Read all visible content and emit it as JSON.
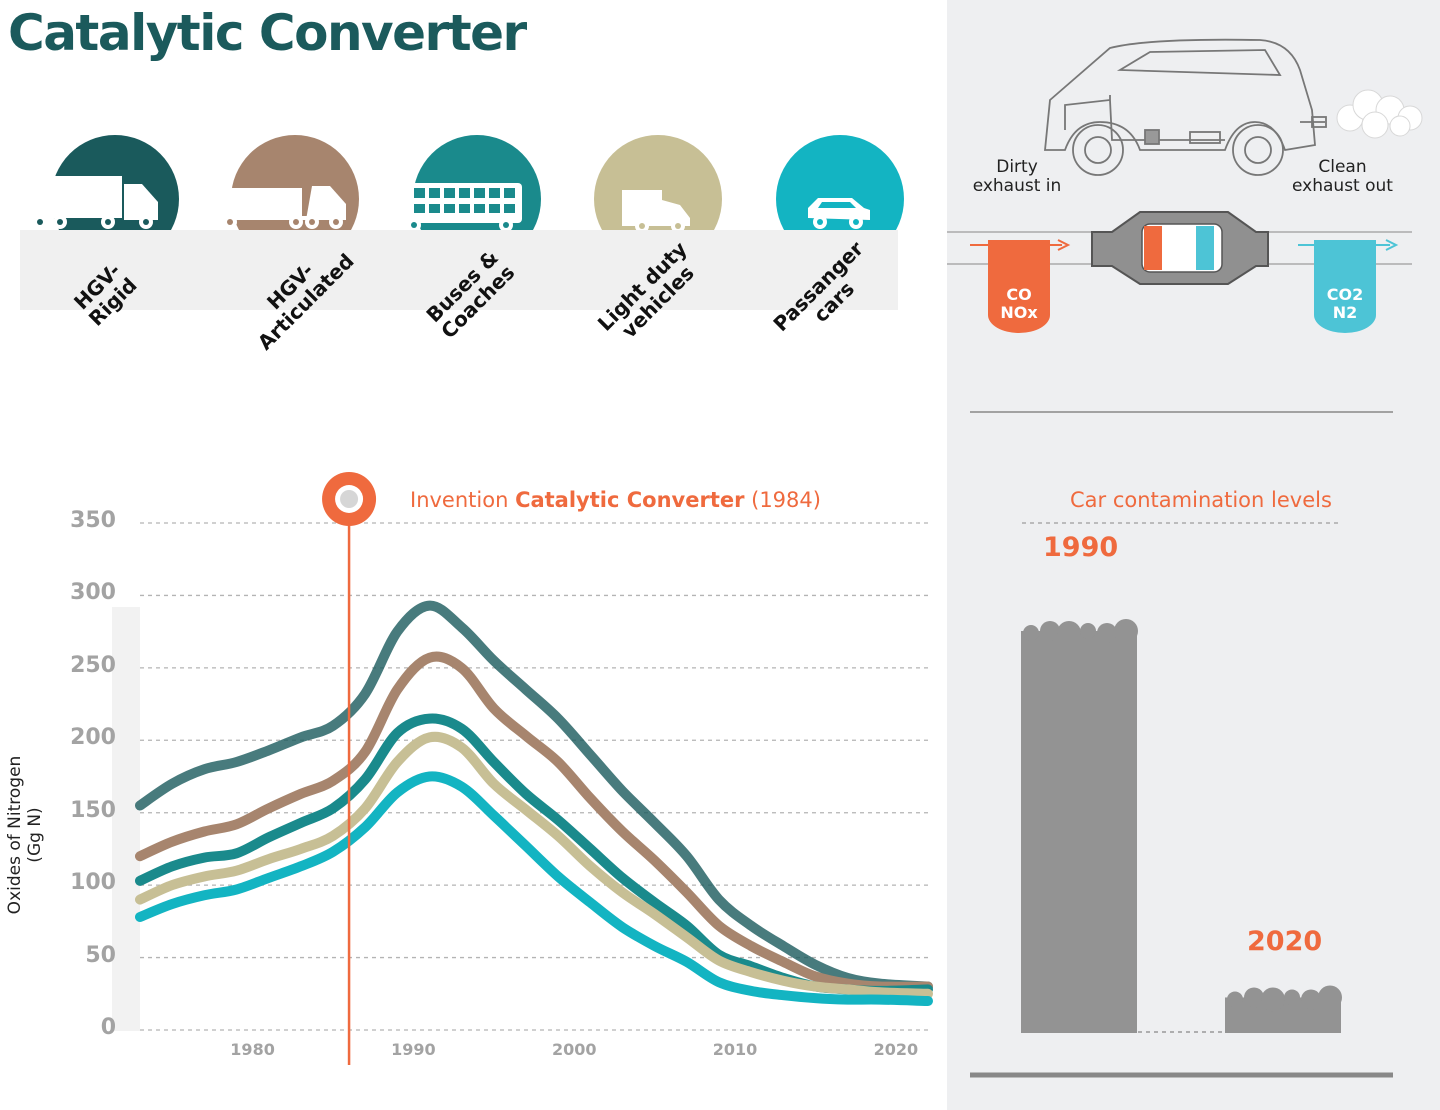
{
  "title": "Catalytic Converter",
  "colors": {
    "hgv_rigid": "#1a5a5c",
    "hgv_articulated": "#a7856e",
    "buses": "#1a8a8c",
    "light_duty": "#c7bf95",
    "cars": "#13b4c2",
    "accent": "#ef6a3e",
    "clean": "#4dc4d6",
    "grey_bar": "#939393"
  },
  "vehicles": [
    {
      "label": "HGV- Rigid",
      "icon": "rigid-truck-icon"
    },
    {
      "label": "HGV- Articulated",
      "icon": "articulated-truck-icon"
    },
    {
      "label": "Buses & Coaches",
      "icon": "double-decker-bus-icon"
    },
    {
      "label": "Light duty vehicles",
      "icon": "van-icon"
    },
    {
      "label": "Passanger cars",
      "icon": "car-icon"
    }
  ],
  "diagram": {
    "dirty": "Dirty exhaust in",
    "clean": "Clean exhaust out",
    "in_gases": [
      "CO",
      "NOx"
    ],
    "out_gases": [
      "CO2",
      "N2"
    ]
  },
  "annotation": {
    "prefix": "Invention ",
    "bold": "Catalytic Converter",
    "suffix": " (1984)"
  },
  "chart_data": [
    {
      "type": "area",
      "ylabel": "Oxides of Nitrogen (Gg N)",
      "xlabel": "",
      "ylim": [
        0,
        350
      ],
      "xlim": [
        1973,
        2022
      ],
      "yticks": [
        0,
        50,
        100,
        150,
        200,
        250,
        300,
        350
      ],
      "xticks": [
        1980,
        1990,
        2000,
        2010,
        2020
      ],
      "grid": "horizontal dashed",
      "marker_year": 1986,
      "x": [
        1973,
        1975,
        1977,
        1979,
        1981,
        1983,
        1985,
        1987,
        1989,
        1991,
        1993,
        1995,
        1997,
        1999,
        2001,
        2003,
        2005,
        2007,
        2009,
        2011,
        2013,
        2015,
        2017,
        2019,
        2022
      ],
      "series": [
        {
          "values": [
            155,
            170,
            180,
            185,
            193,
            202,
            210,
            232,
            275,
            293,
            278,
            255,
            235,
            215,
            190,
            165,
            143,
            120,
            90,
            72,
            58,
            45,
            36,
            32,
            30
          ]
        },
        {
          "values": [
            120,
            130,
            137,
            142,
            153,
            163,
            172,
            192,
            235,
            257,
            250,
            222,
            203,
            185,
            160,
            137,
            117,
            95,
            72,
            58,
            47,
            37,
            32,
            30,
            30
          ]
        },
        {
          "values": [
            103,
            113,
            119,
            122,
            133,
            143,
            153,
            173,
            205,
            215,
            208,
            185,
            163,
            145,
            125,
            105,
            88,
            72,
            52,
            44,
            36,
            30,
            28,
            27,
            28
          ]
        },
        {
          "values": [
            90,
            100,
            106,
            110,
            118,
            125,
            134,
            153,
            185,
            202,
            195,
            170,
            152,
            134,
            113,
            95,
            80,
            64,
            48,
            40,
            34,
            30,
            28,
            26,
            25
          ]
        },
        {
          "values": [
            78,
            87,
            93,
            97,
            105,
            113,
            123,
            140,
            164,
            175,
            168,
            148,
            127,
            106,
            88,
            71,
            58,
            47,
            33,
            27,
            24,
            22,
            21,
            21,
            20
          ]
        }
      ]
    },
    {
      "type": "bar",
      "title": "Car contamination levels",
      "categories": [
        "1990",
        "2020"
      ],
      "values": [
        275,
        28
      ]
    }
  ]
}
